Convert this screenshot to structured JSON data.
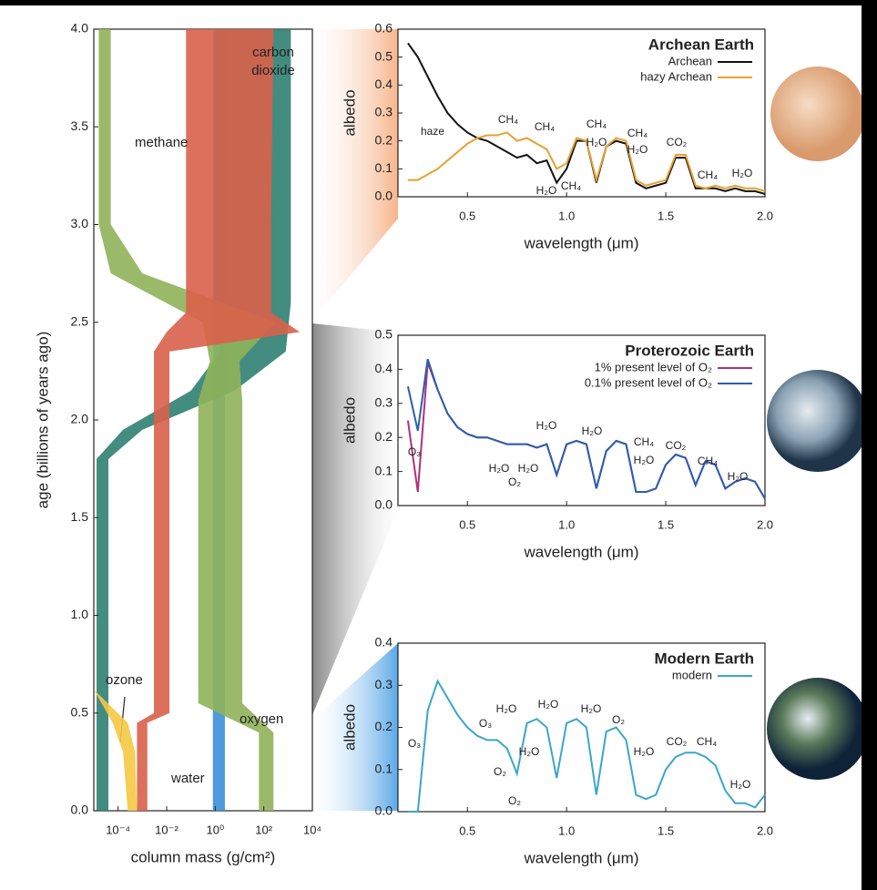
{
  "chart_data": [
    {
      "type": "band",
      "xlabel": "column mass (g/cm²)",
      "ylabel": "age (billions of years ago)",
      "xscale": "log",
      "xlim": [
        1e-05,
        10000
      ],
      "xticks": [
        {
          "value": 0.0001,
          "label": "10⁻⁴"
        },
        {
          "value": 0.01,
          "label": "10⁻²"
        },
        {
          "value": 1,
          "label": "10⁰"
        },
        {
          "value": 100,
          "label": "10²"
        },
        {
          "value": 10000,
          "label": "10⁴"
        }
      ],
      "ylim": [
        0,
        4
      ],
      "yticks": [
        {
          "value": 0,
          "label": "0.0"
        },
        0.5,
        {
          "value": 1,
          "label": "1.0"
        },
        1.5,
        {
          "value": 2,
          "label": "2.0"
        },
        2.5,
        {
          "value": 3,
          "label": "3.0"
        },
        3.5,
        {
          "value": 4,
          "label": "4.0"
        }
      ],
      "series": [
        {
          "name": "water",
          "color": "#3a8fd9",
          "y": [
            4.0,
            0.0
          ],
          "low": [
            0.8,
            0.8
          ],
          "high": [
            2.5,
            2.5
          ]
        },
        {
          "name": "carbon dioxide",
          "color": "#2f7f72",
          "y": [
            4.0,
            2.6,
            2.35,
            2.15,
            1.95,
            1.8,
            0.0
          ],
          "low": [
            1,
            1,
            1.6,
            0.1,
            0.00016,
            1.3e-05,
            1.3e-05
          ],
          "high": [
            1300,
            1300,
            800,
            6.3,
            0.001,
            4e-05,
            4e-05
          ]
        },
        {
          "name": "oxygen",
          "color": "#8fb35a",
          "y": [
            4.0,
            3.0,
            2.75,
            2.5,
            2.3,
            2.1,
            0.55,
            0.4,
            0.0
          ],
          "low": [
            1.6e-05,
            1.6e-05,
            5e-05,
            0.3,
            0.6,
            0.2,
            0.2,
            63,
            63
          ],
          "high": [
            5e-05,
            5e-05,
            0.001,
            300,
            10,
            13,
            13,
            250,
            250
          ]
        },
        {
          "name": "methane",
          "color": "#d9604a",
          "y": [
            4.0,
            3.0,
            2.55,
            2.45,
            2.35,
            2.2,
            0.5,
            0.45,
            0.0
          ],
          "low": [
            0.063,
            0.063,
            0.063,
            0.01,
            0.003,
            0.003,
            0.003,
            0.0006,
            0.0006
          ],
          "high": [
            250,
            200,
            200,
            3000,
            0.013,
            0.013,
            0.013,
            0.0016,
            0.0016
          ]
        },
        {
          "name": "ozone",
          "color": "#f5c842",
          "y": [
            0.62,
            0.45,
            0.3,
            0.0
          ],
          "low": [
            1e-05,
            6e-05,
            0.00016,
            0.00025
          ],
          "high": [
            1e-05,
            0.00025,
            0.0005,
            0.0006
          ]
        }
      ]
    },
    {
      "type": "line",
      "title": "Archean Earth",
      "xlabel": "wavelength (μm)",
      "ylabel": "albedo",
      "xlim": [
        0.15,
        2.0
      ],
      "xticks": [
        0.5,
        {
          "value": 1,
          "label": "1.0"
        },
        1.5,
        {
          "value": 2,
          "label": "2.0"
        }
      ],
      "ylim": [
        0,
        0.6
      ],
      "yticks": [
        {
          "value": 0,
          "label": "0.0"
        },
        0.1,
        0.2,
        0.3,
        0.4,
        0.5,
        0.6
      ],
      "x": [
        0.2,
        0.25,
        0.3,
        0.35,
        0.4,
        0.45,
        0.5,
        0.55,
        0.6,
        0.65,
        0.7,
        0.75,
        0.8,
        0.85,
        0.9,
        0.95,
        1.0,
        1.05,
        1.1,
        1.15,
        1.2,
        1.25,
        1.3,
        1.35,
        1.4,
        1.45,
        1.5,
        1.55,
        1.6,
        1.65,
        1.7,
        1.75,
        1.8,
        1.85,
        1.9,
        1.95,
        2.0
      ],
      "series": [
        {
          "name": "Archean",
          "color": "#111111",
          "values": [
            0.55,
            0.5,
            0.43,
            0.36,
            0.3,
            0.26,
            0.23,
            0.21,
            0.2,
            0.18,
            0.16,
            0.14,
            0.15,
            0.12,
            0.13,
            0.05,
            0.1,
            0.2,
            0.2,
            0.05,
            0.18,
            0.2,
            0.19,
            0.05,
            0.03,
            0.04,
            0.05,
            0.14,
            0.14,
            0.03,
            0.03,
            0.03,
            0.02,
            0.03,
            0.02,
            0.02,
            0.01
          ]
        },
        {
          "name": "hazy Archean",
          "color": "#e8a030",
          "values": [
            0.06,
            0.06,
            0.08,
            0.1,
            0.13,
            0.16,
            0.19,
            0.21,
            0.22,
            0.22,
            0.23,
            0.2,
            0.21,
            0.19,
            0.17,
            0.1,
            0.12,
            0.21,
            0.2,
            0.06,
            0.18,
            0.21,
            0.2,
            0.06,
            0.04,
            0.05,
            0.06,
            0.15,
            0.15,
            0.04,
            0.03,
            0.04,
            0.03,
            0.04,
            0.03,
            0.03,
            0.02
          ]
        }
      ],
      "annotations": [
        "haze",
        "CH₄",
        "CH₄",
        "CH₄",
        "H₂O",
        "CH₄",
        "H₂O",
        "CO₂",
        "CH₄",
        "H₂O",
        "H₂O",
        "CH₄"
      ]
    },
    {
      "type": "line",
      "title": "Proterozoic Earth",
      "xlabel": "wavelength (μm)",
      "ylabel": "albedo",
      "xlim": [
        0.15,
        2.0
      ],
      "xticks": [
        0.5,
        {
          "value": 1,
          "label": "1.0"
        },
        1.5,
        {
          "value": 2,
          "label": "2.0"
        }
      ],
      "ylim": [
        0,
        0.5
      ],
      "yticks": [
        {
          "value": 0,
          "label": "0.0"
        },
        0.1,
        0.2,
        0.3,
        0.4,
        0.5
      ],
      "x": [
        0.2,
        0.25,
        0.3,
        0.35,
        0.4,
        0.45,
        0.5,
        0.55,
        0.6,
        0.65,
        0.7,
        0.75,
        0.8,
        0.85,
        0.9,
        0.95,
        1.0,
        1.05,
        1.1,
        1.15,
        1.2,
        1.25,
        1.3,
        1.35,
        1.4,
        1.45,
        1.5,
        1.55,
        1.6,
        1.65,
        1.7,
        1.75,
        1.8,
        1.85,
        1.9,
        1.95,
        2.0
      ],
      "series": [
        {
          "name": "1% present level of O₂",
          "color": "#b0307a",
          "values": [
            0.25,
            0.04,
            0.42,
            0.34,
            0.27,
            0.23,
            0.21,
            0.2,
            0.2,
            0.19,
            0.18,
            0.18,
            0.18,
            0.17,
            0.18,
            0.09,
            0.18,
            0.19,
            0.18,
            0.05,
            0.16,
            0.19,
            0.18,
            0.04,
            0.04,
            0.05,
            0.12,
            0.15,
            0.14,
            0.06,
            0.13,
            0.12,
            0.05,
            0.07,
            0.08,
            0.07,
            0.02
          ]
        },
        {
          "name": "0.1% present level of O₂",
          "color": "#2a5fb0",
          "values": [
            0.35,
            0.22,
            0.43,
            0.34,
            0.27,
            0.23,
            0.21,
            0.2,
            0.2,
            0.19,
            0.18,
            0.18,
            0.18,
            0.17,
            0.18,
            0.09,
            0.18,
            0.19,
            0.18,
            0.05,
            0.16,
            0.19,
            0.18,
            0.04,
            0.04,
            0.05,
            0.12,
            0.15,
            0.14,
            0.06,
            0.13,
            0.12,
            0.05,
            0.07,
            0.08,
            0.07,
            0.02
          ]
        }
      ],
      "annotations": [
        "O₃",
        "H₂O",
        "H₂O",
        "CH₄",
        "H₂O",
        "CO₂",
        "CH₄",
        "H₂O",
        "H₂O",
        "H₂O",
        "O₂"
      ]
    },
    {
      "type": "line",
      "title": "Modern Earth",
      "xlabel": "wavelength (μm)",
      "ylabel": "albedo",
      "xlim": [
        0.15,
        2.0
      ],
      "xticks": [
        0.5,
        {
          "value": 1,
          "label": "1.0"
        },
        1.5,
        {
          "value": 2,
          "label": "2.0"
        }
      ],
      "ylim": [
        0,
        0.4
      ],
      "yticks": [
        {
          "value": 0,
          "label": "0.0"
        },
        0.1,
        0.2,
        0.3,
        0.4
      ],
      "x": [
        0.2,
        0.25,
        0.3,
        0.35,
        0.4,
        0.45,
        0.5,
        0.55,
        0.6,
        0.65,
        0.7,
        0.75,
        0.8,
        0.85,
        0.9,
        0.95,
        1.0,
        1.05,
        1.1,
        1.15,
        1.2,
        1.25,
        1.3,
        1.35,
        1.4,
        1.45,
        1.5,
        1.55,
        1.6,
        1.65,
        1.7,
        1.75,
        1.8,
        1.85,
        1.9,
        1.95,
        2.0
      ],
      "series": [
        {
          "name": "modern",
          "color": "#3aa6c8",
          "values": [
            0.0,
            0.0,
            0.24,
            0.31,
            0.27,
            0.23,
            0.2,
            0.18,
            0.17,
            0.17,
            0.15,
            0.09,
            0.21,
            0.22,
            0.2,
            0.08,
            0.21,
            0.22,
            0.2,
            0.04,
            0.19,
            0.2,
            0.17,
            0.04,
            0.03,
            0.04,
            0.1,
            0.13,
            0.14,
            0.14,
            0.13,
            0.11,
            0.05,
            0.02,
            0.02,
            0.01,
            0.04
          ]
        }
      ],
      "annotations": [
        "O₃",
        "O₃",
        "H₂O",
        "H₂O",
        "H₂O",
        "O₂",
        "H₂O",
        "O₂",
        "O₂",
        "H₂O",
        "CO₂",
        "CH₄",
        "H₂O"
      ]
    }
  ]
}
